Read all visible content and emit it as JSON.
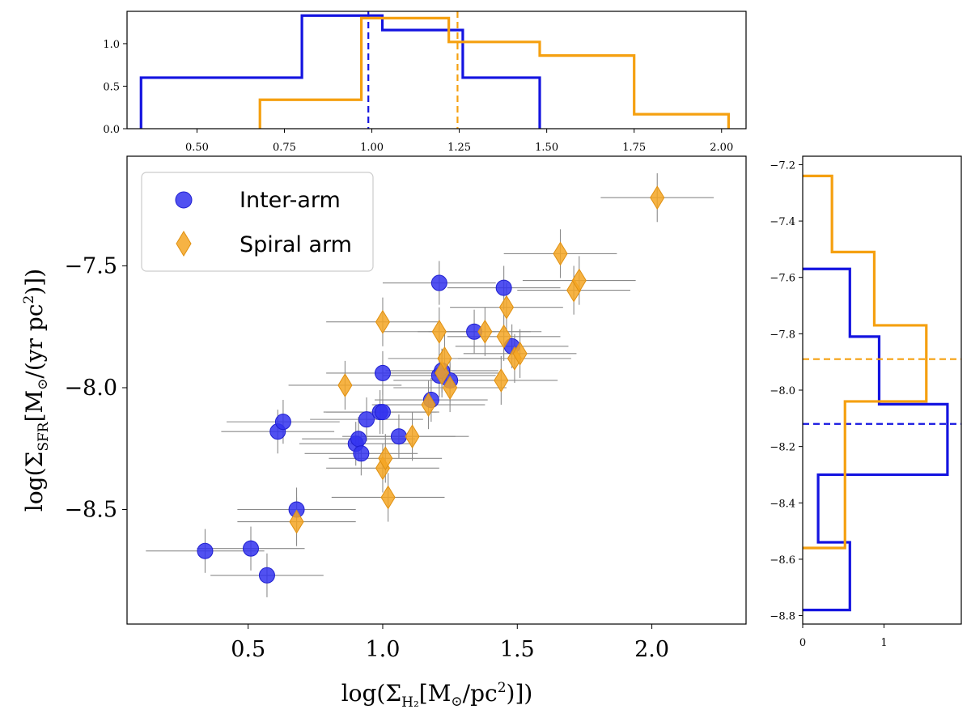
{
  "chart_data": [
    {
      "id": "main-scatter",
      "type": "scatter",
      "xlabel": "log(Σ_H2 [M⊙/pc²])",
      "ylabel": "log(Σ_SFR [M⊙/(yr pc²)])",
      "xlim": [
        0.05,
        2.35
      ],
      "ylim": [
        -8.97,
        -7.05
      ],
      "xticks": [
        0.5,
        1.0,
        1.5,
        2.0
      ],
      "xtick_labels": [
        "0.5",
        "1.0",
        "1.5",
        "2.0"
      ],
      "yticks": [
        -7.5,
        -8.0,
        -8.5
      ],
      "ytick_labels": [
        "−7.5",
        "−8.0",
        "−8.5"
      ],
      "legend_position": "top-left",
      "series": [
        {
          "name": "Inter-arm",
          "marker": "circle",
          "color": "#3333ee",
          "points": [
            {
              "x": 0.34,
              "y": -8.67,
              "xerr": 0.22,
              "yerr": 0.09
            },
            {
              "x": 0.51,
              "y": -8.66,
              "xerr": 0.2,
              "yerr": 0.09
            },
            {
              "x": 0.57,
              "y": -8.77,
              "xerr": 0.21,
              "yerr": 0.09
            },
            {
              "x": 0.61,
              "y": -8.18,
              "xerr": 0.21,
              "yerr": 0.09
            },
            {
              "x": 0.63,
              "y": -8.14,
              "xerr": 0.21,
              "yerr": 0.09
            },
            {
              "x": 0.68,
              "y": -8.5,
              "xerr": 0.22,
              "yerr": 0.09
            },
            {
              "x": 0.9,
              "y": -8.23,
              "xerr": 0.21,
              "yerr": 0.09
            },
            {
              "x": 0.91,
              "y": -8.21,
              "xerr": 0.21,
              "yerr": 0.09
            },
            {
              "x": 0.92,
              "y": -8.27,
              "xerr": 0.21,
              "yerr": 0.09
            },
            {
              "x": 0.94,
              "y": -8.13,
              "xerr": 0.21,
              "yerr": 0.09
            },
            {
              "x": 0.99,
              "y": -8.1,
              "xerr": 0.21,
              "yerr": 0.09
            },
            {
              "x": 1.0,
              "y": -8.1,
              "xerr": 0.21,
              "yerr": 0.09
            },
            {
              "x": 1.0,
              "y": -7.94,
              "xerr": 0.21,
              "yerr": 0.09
            },
            {
              "x": 1.06,
              "y": -8.2,
              "xerr": 0.21,
              "yerr": 0.09
            },
            {
              "x": 1.18,
              "y": -8.05,
              "xerr": 0.21,
              "yerr": 0.09
            },
            {
              "x": 1.21,
              "y": -7.57,
              "xerr": 0.21,
              "yerr": 0.09
            },
            {
              "x": 1.21,
              "y": -7.95,
              "xerr": 0.21,
              "yerr": 0.09
            },
            {
              "x": 1.22,
              "y": -7.93,
              "xerr": 0.21,
              "yerr": 0.09
            },
            {
              "x": 1.25,
              "y": -7.97,
              "xerr": 0.21,
              "yerr": 0.09
            },
            {
              "x": 1.34,
              "y": -7.77,
              "xerr": 0.21,
              "yerr": 0.09
            },
            {
              "x": 1.45,
              "y": -7.59,
              "xerr": 0.21,
              "yerr": 0.09
            },
            {
              "x": 1.48,
              "y": -7.83,
              "xerr": 0.21,
              "yerr": 0.09
            }
          ]
        },
        {
          "name": "Spiral arm",
          "marker": "diamond",
          "color": "#f5a623",
          "points": [
            {
              "x": 0.68,
              "y": -8.55,
              "xerr": 0.22,
              "yerr": 0.1
            },
            {
              "x": 0.86,
              "y": -7.99,
              "xerr": 0.21,
              "yerr": 0.1
            },
            {
              "x": 1.0,
              "y": -7.73,
              "xerr": 0.21,
              "yerr": 0.1
            },
            {
              "x": 1.0,
              "y": -8.33,
              "xerr": 0.21,
              "yerr": 0.1
            },
            {
              "x": 1.01,
              "y": -8.29,
              "xerr": 0.21,
              "yerr": 0.1
            },
            {
              "x": 1.02,
              "y": -8.45,
              "xerr": 0.21,
              "yerr": 0.1
            },
            {
              "x": 1.11,
              "y": -8.2,
              "xerr": 0.21,
              "yerr": 0.1
            },
            {
              "x": 1.17,
              "y": -8.07,
              "xerr": 0.21,
              "yerr": 0.1
            },
            {
              "x": 1.21,
              "y": -7.77,
              "xerr": 0.21,
              "yerr": 0.1
            },
            {
              "x": 1.22,
              "y": -7.94,
              "xerr": 0.21,
              "yerr": 0.1
            },
            {
              "x": 1.23,
              "y": -7.88,
              "xerr": 0.21,
              "yerr": 0.1
            },
            {
              "x": 1.25,
              "y": -8.0,
              "xerr": 0.21,
              "yerr": 0.1
            },
            {
              "x": 1.38,
              "y": -7.77,
              "xerr": 0.21,
              "yerr": 0.1
            },
            {
              "x": 1.44,
              "y": -7.97,
              "xerr": 0.21,
              "yerr": 0.1
            },
            {
              "x": 1.45,
              "y": -7.79,
              "xerr": 0.21,
              "yerr": 0.1
            },
            {
              "x": 1.46,
              "y": -7.67,
              "xerr": 0.21,
              "yerr": 0.1
            },
            {
              "x": 1.49,
              "y": -7.88,
              "xerr": 0.21,
              "yerr": 0.1
            },
            {
              "x": 1.51,
              "y": -7.86,
              "xerr": 0.21,
              "yerr": 0.1
            },
            {
              "x": 1.66,
              "y": -7.45,
              "xerr": 0.21,
              "yerr": 0.1
            },
            {
              "x": 1.71,
              "y": -7.6,
              "xerr": 0.21,
              "yerr": 0.1
            },
            {
              "x": 1.73,
              "y": -7.56,
              "xerr": 0.21,
              "yerr": 0.1
            },
            {
              "x": 2.02,
              "y": -7.22,
              "xerr": 0.21,
              "yerr": 0.1
            }
          ]
        }
      ]
    },
    {
      "id": "top-histogram",
      "type": "step-histogram",
      "orientation": "vertical",
      "xlim": [
        0.3,
        2.07
      ],
      "ylim": [
        0,
        1.38
      ],
      "xticks": [
        0.5,
        0.75,
        1.0,
        1.25,
        1.5,
        1.75,
        2.0
      ],
      "xtick_labels": [
        "0.50",
        "0.75",
        "1.00",
        "1.25",
        "1.50",
        "1.75",
        "2.00"
      ],
      "yticks": [
        0.0,
        0.5,
        1.0
      ],
      "ytick_labels": [
        "0.0",
        "0.5",
        "1.0"
      ],
      "series": [
        {
          "name": "Inter-arm",
          "color": "#1414e0",
          "edges": [
            0.34,
            0.8,
            1.03,
            1.26,
            1.48
          ],
          "values": [
            0.6,
            1.33,
            1.16,
            0.6
          ],
          "median": 0.99
        },
        {
          "name": "Spiral arm",
          "color": "#f5a010",
          "edges": [
            0.68,
            0.97,
            1.22,
            1.48,
            1.75,
            2.02
          ],
          "values": [
            0.34,
            1.3,
            1.02,
            0.86,
            0.17
          ],
          "median": 1.245
        }
      ]
    },
    {
      "id": "right-histogram",
      "type": "step-histogram",
      "orientation": "horizontal",
      "xlim": [
        0,
        1.95
      ],
      "ylim": [
        -8.83,
        -7.17
      ],
      "xticks": [
        0,
        1
      ],
      "xtick_labels": [
        "0",
        "1"
      ],
      "yticks": [
        -7.2,
        -7.4,
        -7.6,
        -7.8,
        -8.0,
        -8.2,
        -8.4,
        -8.6,
        -8.8
      ],
      "ytick_labels": [
        "−7.2",
        "−7.4",
        "−7.6",
        "−7.8",
        "−8.0",
        "−8.2",
        "−8.4",
        "−8.6",
        "−8.8"
      ],
      "series": [
        {
          "name": "Inter-arm",
          "color": "#1414e0",
          "edges": [
            -8.78,
            -8.54,
            -8.3,
            -8.05,
            -7.81,
            -7.57
          ],
          "values": [
            0.58,
            0.19,
            1.78,
            0.94,
            0.58
          ],
          "median": -8.12
        },
        {
          "name": "Spiral arm",
          "color": "#f5a010",
          "edges": [
            -8.56,
            -8.04,
            -7.77,
            -7.51,
            -7.24
          ],
          "values": [
            0.52,
            1.52,
            0.88,
            0.36
          ],
          "median": -7.89
        }
      ]
    }
  ]
}
